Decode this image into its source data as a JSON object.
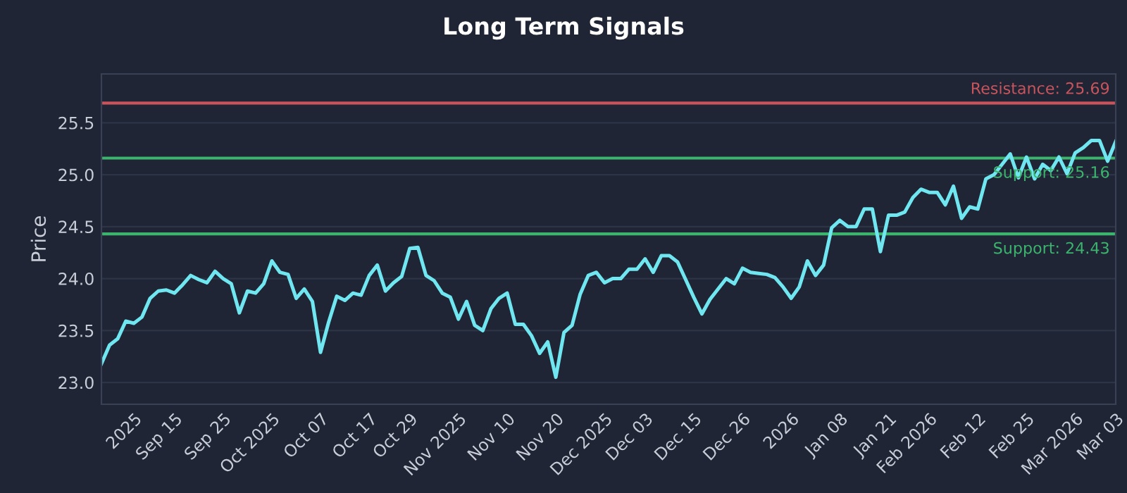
{
  "chart_data": {
    "type": "line",
    "title": "Long Term Signals",
    "ylabel": "Price",
    "categories": [
      null,
      null,
      null,
      null,
      "2025",
      null,
      null,
      null,
      null,
      "Sep 15",
      null,
      null,
      null,
      null,
      null,
      "Sep 25",
      null,
      null,
      null,
      null,
      null,
      "Oct 2025",
      null,
      null,
      null,
      null,
      null,
      "Oct 07",
      null,
      null,
      null,
      null,
      null,
      "Oct 17",
      null,
      null,
      null,
      null,
      "Oct 29",
      null,
      null,
      null,
      null,
      null,
      "Nov 2025",
      null,
      null,
      null,
      null,
      null,
      "Nov 10",
      null,
      null,
      null,
      null,
      null,
      "Nov 20",
      null,
      null,
      null,
      null,
      null,
      "Dec 2025",
      null,
      null,
      null,
      null,
      "Dec 03",
      null,
      null,
      null,
      null,
      null,
      "Dec 15",
      null,
      null,
      null,
      null,
      null,
      "Dec 26",
      null,
      null,
      null,
      null,
      null,
      "2026",
      null,
      null,
      null,
      null,
      null,
      "Jan 08",
      null,
      null,
      null,
      null,
      null,
      "Jan 21",
      null,
      null,
      null,
      null,
      "Feb 2026",
      null,
      null,
      null,
      null,
      null,
      "Feb 12",
      null,
      null,
      null,
      null,
      null,
      "Feb 25",
      null,
      null,
      null,
      null,
      null,
      "Mar 2026",
      null,
      null,
      null,
      null,
      "Mar 03"
    ],
    "series": [
      {
        "color": "#6fe6f0",
        "values": [
          23.18,
          23.36,
          23.42,
          23.59,
          23.57,
          23.63,
          23.81,
          23.88,
          23.89,
          23.86,
          23.94,
          24.03,
          23.99,
          23.96,
          24.07,
          24.0,
          23.95,
          23.67,
          23.88,
          23.86,
          23.95,
          24.17,
          24.06,
          24.04,
          23.81,
          23.9,
          23.78,
          23.29,
          23.58,
          23.83,
          23.79,
          23.86,
          23.84,
          24.03,
          24.13,
          23.88,
          23.96,
          24.02,
          24.29,
          24.3,
          24.03,
          23.98,
          23.86,
          23.82,
          23.61,
          23.78,
          23.55,
          23.5,
          23.71,
          23.81,
          23.86,
          23.56,
          23.56,
          23.45,
          23.28,
          23.39,
          23.05,
          23.48,
          23.55,
          23.85,
          24.03,
          24.06,
          23.96,
          24.0,
          24.0,
          24.09,
          24.09,
          24.19,
          24.06,
          24.22,
          24.22,
          24.16,
          23.99,
          23.82,
          23.66,
          23.8,
          23.9,
          24.0,
          23.95,
          24.1,
          24.06,
          24.05,
          24.04,
          24.01,
          23.92,
          23.81,
          23.92,
          24.17,
          24.03,
          24.13,
          24.49,
          24.56,
          24.5,
          24.5,
          24.67,
          24.67,
          24.26,
          24.61,
          24.61,
          24.64,
          24.78,
          24.86,
          24.83,
          24.83,
          24.71,
          24.89,
          24.58,
          24.69,
          24.67,
          24.96,
          25.0,
          25.1,
          25.2,
          24.97,
          25.17,
          24.96,
          25.1,
          25.04,
          25.17,
          25.01,
          25.21,
          25.26,
          25.33,
          25.33,
          25.13,
          25.32
        ]
      }
    ],
    "ylim": [
      22.79,
      25.97
    ],
    "yticks": [
      {
        "value": 23.0,
        "label": "23.0"
      },
      {
        "value": 23.5,
        "label": "23.5"
      },
      {
        "value": 24.0,
        "label": "24.0"
      },
      {
        "value": 24.5,
        "label": "24.5"
      },
      {
        "value": 25.0,
        "label": "25.0"
      },
      {
        "value": 25.5,
        "label": "25.5"
      }
    ],
    "grid": "y",
    "line_style": "solid",
    "marker": "none",
    "legend": false,
    "ref_lines": [
      {
        "axis": "y",
        "value": 25.69,
        "label": "Resistance: 25.69",
        "color": "#c9545c"
      },
      {
        "axis": "y",
        "value": 25.16,
        "label": "Support: 25.16",
        "color": "#3cb46e"
      },
      {
        "axis": "y",
        "value": 24.43,
        "label": "Support: 24.43",
        "color": "#3cb46e"
      }
    ]
  }
}
